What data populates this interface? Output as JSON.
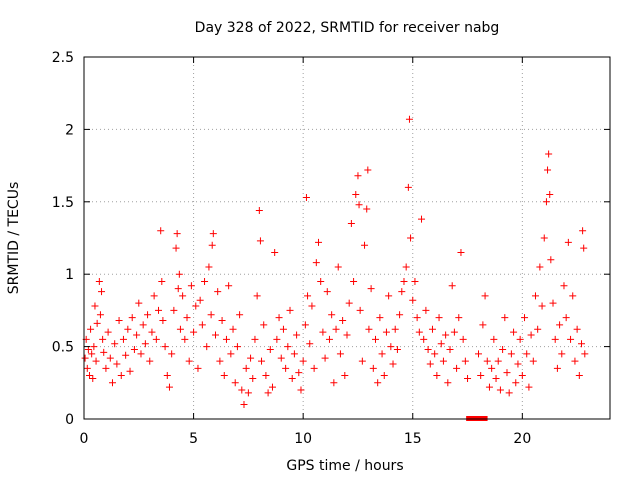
{
  "chart_data": {
    "type": "scatter",
    "title": "Day 328 of 2022, SRMTID for receiver nabg",
    "xlabel": "GPS time / hours",
    "ylabel": "SRMTID / TECUs",
    "xlim": [
      0,
      24
    ],
    "ylim": [
      0,
      2.5
    ],
    "x_ticks": [
      0,
      5,
      10,
      15,
      20
    ],
    "y_ticks": [
      0,
      0.5,
      1,
      1.5,
      2,
      2.5
    ],
    "x_tick_labels": [
      "0",
      "5",
      "10",
      "15",
      "20"
    ],
    "y_tick_labels": [
      "0",
      "0.5",
      "1",
      "1.5",
      "2",
      "2.5"
    ],
    "grid": true,
    "marker": "+",
    "series_color": "#ff0000",
    "gap_color": "#ff0000",
    "series": [
      {
        "name": "SRMTID",
        "points": [
          [
            0.05,
            0.42
          ],
          [
            0.1,
            0.55
          ],
          [
            0.15,
            0.35
          ],
          [
            0.2,
            0.48
          ],
          [
            0.25,
            0.3
          ],
          [
            0.3,
            0.62
          ],
          [
            0.35,
            0.45
          ],
          [
            0.4,
            0.28
          ],
          [
            0.45,
            0.5
          ],
          [
            0.5,
            0.78
          ],
          [
            0.55,
            0.4
          ],
          [
            0.6,
            0.66
          ],
          [
            0.7,
            0.95
          ],
          [
            0.75,
            0.72
          ],
          [
            0.8,
            0.88
          ],
          [
            0.85,
            0.55
          ],
          [
            0.9,
            0.46
          ],
          [
            1.0,
            0.35
          ],
          [
            1.1,
            0.6
          ],
          [
            1.2,
            0.42
          ],
          [
            1.3,
            0.25
          ],
          [
            1.4,
            0.52
          ],
          [
            1.5,
            0.38
          ],
          [
            1.6,
            0.68
          ],
          [
            1.7,
            0.3
          ],
          [
            1.8,
            0.55
          ],
          [
            1.9,
            0.44
          ],
          [
            2.0,
            0.62
          ],
          [
            2.1,
            0.33
          ],
          [
            2.2,
            0.7
          ],
          [
            2.3,
            0.48
          ],
          [
            2.4,
            0.58
          ],
          [
            2.5,
            0.8
          ],
          [
            2.6,
            0.45
          ],
          [
            2.7,
            0.65
          ],
          [
            2.8,
            0.52
          ],
          [
            2.9,
            0.72
          ],
          [
            3.0,
            0.4
          ],
          [
            3.1,
            0.6
          ],
          [
            3.2,
            0.85
          ],
          [
            3.3,
            0.55
          ],
          [
            3.4,
            0.75
          ],
          [
            3.5,
            1.3
          ],
          [
            3.55,
            0.95
          ],
          [
            3.6,
            0.68
          ],
          [
            3.7,
            0.5
          ],
          [
            3.8,
            0.3
          ],
          [
            3.9,
            0.22
          ],
          [
            4.0,
            0.45
          ],
          [
            4.1,
            0.75
          ],
          [
            4.2,
            1.18
          ],
          [
            4.25,
            1.28
          ],
          [
            4.3,
            0.9
          ],
          [
            4.35,
            1.0
          ],
          [
            4.4,
            0.62
          ],
          [
            4.5,
            0.85
          ],
          [
            4.6,
            0.55
          ],
          [
            4.7,
            0.7
          ],
          [
            4.8,
            0.4
          ],
          [
            4.9,
            0.92
          ],
          [
            5.0,
            0.6
          ],
          [
            5.1,
            0.78
          ],
          [
            5.2,
            0.35
          ],
          [
            5.3,
            0.82
          ],
          [
            5.4,
            0.65
          ],
          [
            5.5,
            0.95
          ],
          [
            5.6,
            0.5
          ],
          [
            5.7,
            1.05
          ],
          [
            5.8,
            0.72
          ],
          [
            5.85,
            1.2
          ],
          [
            5.9,
            1.28
          ],
          [
            6.0,
            0.58
          ],
          [
            6.1,
            0.88
          ],
          [
            6.2,
            0.4
          ],
          [
            6.3,
            0.68
          ],
          [
            6.4,
            0.3
          ],
          [
            6.5,
            0.55
          ],
          [
            6.6,
            0.92
          ],
          [
            6.7,
            0.45
          ],
          [
            6.8,
            0.62
          ],
          [
            6.9,
            0.25
          ],
          [
            7.0,
            0.5
          ],
          [
            7.1,
            0.72
          ],
          [
            7.2,
            0.2
          ],
          [
            7.3,
            0.1
          ],
          [
            7.4,
            0.35
          ],
          [
            7.5,
            0.18
          ],
          [
            7.6,
            0.42
          ],
          [
            7.7,
            0.28
          ],
          [
            7.8,
            0.55
          ],
          [
            7.9,
            0.85
          ],
          [
            8.0,
            1.44
          ],
          [
            8.05,
            1.23
          ],
          [
            8.1,
            0.4
          ],
          [
            8.2,
            0.65
          ],
          [
            8.3,
            0.3
          ],
          [
            8.4,
            0.18
          ],
          [
            8.5,
            0.48
          ],
          [
            8.6,
            0.22
          ],
          [
            8.7,
            1.15
          ],
          [
            8.8,
            0.55
          ],
          [
            8.9,
            0.7
          ],
          [
            9.0,
            0.42
          ],
          [
            9.1,
            0.62
          ],
          [
            9.2,
            0.35
          ],
          [
            9.3,
            0.5
          ],
          [
            9.4,
            0.75
          ],
          [
            9.5,
            0.28
          ],
          [
            9.6,
            0.45
          ],
          [
            9.7,
            0.58
          ],
          [
            9.8,
            0.32
          ],
          [
            9.9,
            0.2
          ],
          [
            10.0,
            0.4
          ],
          [
            10.1,
            0.65
          ],
          [
            10.15,
            1.53
          ],
          [
            10.2,
            0.85
          ],
          [
            10.3,
            0.52
          ],
          [
            10.4,
            0.78
          ],
          [
            10.5,
            0.35
          ],
          [
            10.6,
            1.08
          ],
          [
            10.7,
            1.22
          ],
          [
            10.8,
            0.95
          ],
          [
            10.9,
            0.6
          ],
          [
            11.0,
            0.42
          ],
          [
            11.1,
            0.88
          ],
          [
            11.2,
            0.55
          ],
          [
            11.3,
            0.72
          ],
          [
            11.4,
            0.25
          ],
          [
            11.5,
            0.62
          ],
          [
            11.6,
            1.05
          ],
          [
            11.7,
            0.45
          ],
          [
            11.8,
            0.68
          ],
          [
            11.9,
            0.3
          ],
          [
            12.0,
            0.58
          ],
          [
            12.1,
            0.8
          ],
          [
            12.2,
            1.35
          ],
          [
            12.3,
            0.95
          ],
          [
            12.4,
            1.55
          ],
          [
            12.5,
            1.68
          ],
          [
            12.55,
            1.48
          ],
          [
            12.6,
            0.75
          ],
          [
            12.7,
            0.4
          ],
          [
            12.8,
            1.2
          ],
          [
            12.9,
            1.45
          ],
          [
            12.95,
            1.72
          ],
          [
            13.0,
            0.62
          ],
          [
            13.1,
            0.9
          ],
          [
            13.2,
            0.35
          ],
          [
            13.3,
            0.55
          ],
          [
            13.4,
            0.25
          ],
          [
            13.5,
            0.7
          ],
          [
            13.6,
            0.45
          ],
          [
            13.7,
            0.3
          ],
          [
            13.8,
            0.6
          ],
          [
            13.9,
            0.85
          ],
          [
            14.0,
            0.5
          ],
          [
            14.1,
            0.38
          ],
          [
            14.2,
            0.62
          ],
          [
            14.3,
            0.48
          ],
          [
            14.4,
            0.72
          ],
          [
            14.5,
            0.88
          ],
          [
            14.6,
            0.95
          ],
          [
            14.7,
            1.05
          ],
          [
            14.8,
            1.6
          ],
          [
            14.85,
            2.07
          ],
          [
            14.9,
            1.25
          ],
          [
            15.0,
            0.82
          ],
          [
            15.1,
            0.95
          ],
          [
            15.2,
            0.7
          ],
          [
            15.3,
            0.6
          ],
          [
            15.4,
            1.38
          ],
          [
            15.5,
            0.55
          ],
          [
            15.6,
            0.75
          ],
          [
            15.7,
            0.48
          ],
          [
            15.8,
            0.38
          ],
          [
            15.9,
            0.62
          ],
          [
            16.0,
            0.45
          ],
          [
            16.1,
            0.3
          ],
          [
            16.2,
            0.7
          ],
          [
            16.3,
            0.52
          ],
          [
            16.4,
            0.4
          ],
          [
            16.5,
            0.58
          ],
          [
            16.6,
            0.25
          ],
          [
            16.7,
            0.48
          ],
          [
            16.8,
            0.92
          ],
          [
            16.9,
            0.6
          ],
          [
            17.0,
            0.35
          ],
          [
            17.1,
            0.7
          ],
          [
            17.2,
            1.15
          ],
          [
            17.3,
            0.55
          ],
          [
            17.4,
            0.4
          ],
          [
            17.5,
            0.28
          ],
          [
            18.0,
            0.45
          ],
          [
            18.1,
            0.3
          ],
          [
            18.2,
            0.65
          ],
          [
            18.3,
            0.85
          ],
          [
            18.4,
            0.4
          ],
          [
            18.5,
            0.22
          ],
          [
            18.6,
            0.35
          ],
          [
            18.7,
            0.55
          ],
          [
            18.8,
            0.28
          ],
          [
            18.9,
            0.4
          ],
          [
            19.0,
            0.2
          ],
          [
            19.1,
            0.48
          ],
          [
            19.2,
            0.7
          ],
          [
            19.3,
            0.32
          ],
          [
            19.4,
            0.18
          ],
          [
            19.5,
            0.45
          ],
          [
            19.6,
            0.6
          ],
          [
            19.7,
            0.25
          ],
          [
            19.8,
            0.38
          ],
          [
            19.9,
            0.55
          ],
          [
            20.0,
            0.3
          ],
          [
            20.1,
            0.7
          ],
          [
            20.2,
            0.45
          ],
          [
            20.3,
            0.22
          ],
          [
            20.4,
            0.58
          ],
          [
            20.5,
            0.4
          ],
          [
            20.6,
            0.85
          ],
          [
            20.7,
            0.62
          ],
          [
            20.8,
            1.05
          ],
          [
            20.9,
            0.78
          ],
          [
            21.0,
            1.25
          ],
          [
            21.1,
            1.5
          ],
          [
            21.15,
            1.72
          ],
          [
            21.2,
            1.83
          ],
          [
            21.25,
            1.55
          ],
          [
            21.3,
            1.1
          ],
          [
            21.4,
            0.8
          ],
          [
            21.5,
            0.55
          ],
          [
            21.6,
            0.35
          ],
          [
            21.7,
            0.65
          ],
          [
            21.8,
            0.45
          ],
          [
            21.9,
            0.92
          ],
          [
            22.0,
            0.7
          ],
          [
            22.1,
            1.22
          ],
          [
            22.2,
            0.55
          ],
          [
            22.3,
            0.85
          ],
          [
            22.4,
            0.4
          ],
          [
            22.5,
            0.62
          ],
          [
            22.6,
            0.3
          ],
          [
            22.7,
            0.52
          ],
          [
            22.75,
            1.3
          ],
          [
            22.8,
            1.18
          ],
          [
            22.85,
            0.45
          ]
        ]
      }
    ],
    "gap_markers_x": [
      17.55,
      17.7,
      17.85,
      18.0,
      18.15,
      18.3
    ]
  }
}
